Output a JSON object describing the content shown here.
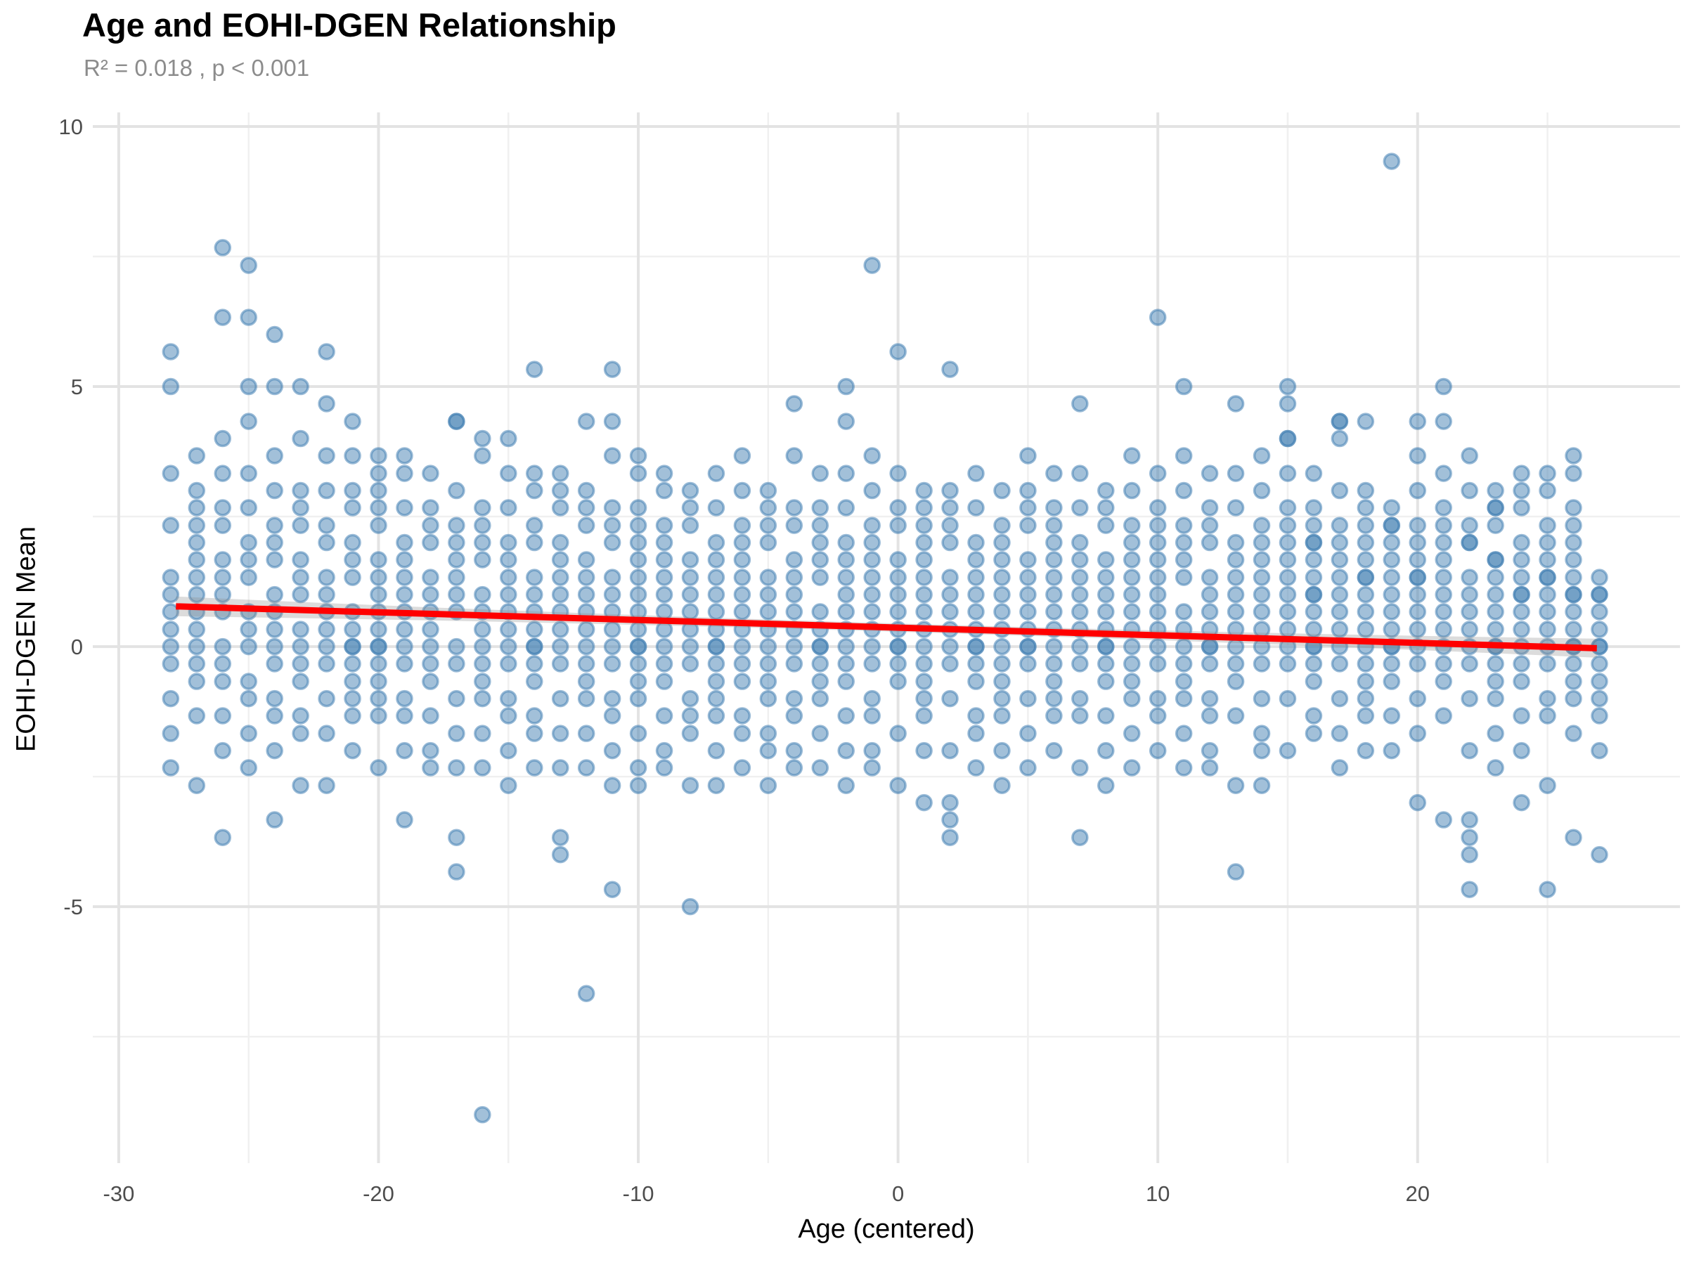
{
  "header": {
    "title": "Age and EOHI-DGEN Relationship",
    "subtitle": "R² = 0.018 , p < 0.001"
  },
  "chart_data": {
    "type": "scatter",
    "title": "Age and EOHI-DGEN Relationship",
    "subtitle": "R² = 0.018 , p < 0.001",
    "xlabel": "Age (centered)",
    "ylabel": "EOHI-DGEN Mean",
    "xlim": [
      -31,
      30.1
    ],
    "ylim": [
      -9.93,
      10.27
    ],
    "x_ticks": [
      -30,
      -20,
      -10,
      0,
      10,
      20
    ],
    "y_ticks": [
      -5,
      0,
      5,
      10
    ],
    "x_minor": [
      -25,
      -15,
      -5,
      5,
      15,
      25
    ],
    "y_minor": [
      -7.5,
      -2.5,
      2.5,
      7.5
    ],
    "grid": "on",
    "legend": "none",
    "point_color": "#4682B4",
    "line_color": "#FF0000",
    "band_color": "#8c8c8c",
    "stats": {
      "r_squared": 0.018,
      "p_value_label": "p < 0.001"
    },
    "regression": {
      "slope": -0.0147,
      "intercept": 0.365,
      "x_start": -27.8,
      "x_end": 26.9,
      "band_half_width_mid": 0.08,
      "band_half_width_end": 0.19
    },
    "points_by_x": [
      [
        -28,
        [
          5.67,
          5,
          3.33,
          2.33,
          1.33,
          1,
          0.67,
          0.33,
          0,
          -0.33,
          -1,
          -1.67,
          -2.33
        ]
      ],
      [
        -27,
        [
          3.67,
          3,
          2.67,
          2.33,
          2,
          1.67,
          1.33,
          1,
          0.67,
          0.33,
          0,
          -0.33,
          -0.67,
          -1.33,
          -2.67
        ]
      ],
      [
        -26,
        [
          7.67,
          6.33,
          4,
          3.33,
          2.67,
          2.33,
          1.67,
          1.33,
          1,
          0.67,
          0,
          -0.33,
          -0.67,
          -1.33,
          -2,
          -3.67
        ]
      ],
      [
        -25,
        [
          7.33,
          6.33,
          5,
          4.33,
          3.33,
          2.67,
          2,
          1.67,
          1.33,
          0.67,
          0.33,
          0,
          -0.67,
          -1,
          -1.67,
          -2.33
        ]
      ],
      [
        -24,
        [
          6,
          5,
          3.67,
          3,
          2.33,
          2,
          1.67,
          1,
          0.67,
          0.33,
          0,
          -0.33,
          -1,
          -1.33,
          -2,
          -3.33
        ]
      ],
      [
        -23,
        [
          5,
          4,
          3,
          2.67,
          2.33,
          1.67,
          1.33,
          1,
          0.33,
          0,
          -0.33,
          -0.67,
          -1.33,
          -1.67,
          -2.67
        ]
      ],
      [
        -22,
        [
          5.67,
          4.67,
          3.67,
          3,
          2.33,
          2,
          1.33,
          1,
          0.67,
          0.33,
          0,
          -0.33,
          -1,
          -1.67,
          -2.67
        ]
      ],
      [
        -21,
        [
          4.33,
          3.67,
          3,
          2.67,
          2,
          1.67,
          1.33,
          0.67,
          0.33,
          0,
          0,
          -0.33,
          -0.67,
          -1,
          -1.33,
          -2
        ]
      ],
      [
        -20,
        [
          3.67,
          3.33,
          3,
          2.67,
          2.33,
          1.67,
          1.33,
          1,
          0.67,
          0.33,
          0,
          0,
          -0.33,
          -0.67,
          -1,
          -1.33,
          -2.33
        ]
      ],
      [
        -19,
        [
          3.67,
          3.33,
          2.67,
          2,
          1.67,
          1.33,
          1,
          0.67,
          0.33,
          0,
          -0.33,
          -1,
          -1.33,
          -2,
          -3.33
        ]
      ],
      [
        -18,
        [
          3.33,
          2.67,
          2.33,
          2,
          1.33,
          1,
          0.67,
          0.33,
          0,
          -0.33,
          -0.67,
          -1.33,
          -2,
          -2.33
        ]
      ],
      [
        -17,
        [
          4.33,
          4.33,
          3,
          2.33,
          2,
          1.67,
          1.33,
          1,
          0.67,
          0,
          -0.33,
          -1,
          -1.67,
          -2.33,
          -3.67,
          -4.33
        ]
      ],
      [
        -16,
        [
          4,
          3.67,
          2.67,
          2.33,
          2,
          1.67,
          1,
          0.67,
          0.33,
          0,
          -0.33,
          -0.67,
          -1,
          -1.67,
          -2.33,
          -9
        ]
      ],
      [
        -15,
        [
          4,
          3.33,
          2.67,
          2,
          1.67,
          1.33,
          1,
          0.67,
          0.33,
          0,
          -0.33,
          -1,
          -1.33,
          -2,
          -2.67
        ]
      ],
      [
        -14,
        [
          5.33,
          3.33,
          3,
          2.33,
          2,
          1.33,
          1,
          0.67,
          0.33,
          0,
          0,
          -0.33,
          -0.67,
          -1.33,
          -1.67,
          -2.33
        ]
      ],
      [
        -13,
        [
          3.33,
          3,
          2.67,
          2,
          1.67,
          1.33,
          1,
          0.67,
          0.33,
          0,
          -0.33,
          -1,
          -1.67,
          -2.33,
          -3.67,
          -4
        ]
      ],
      [
        -12,
        [
          4.33,
          3,
          2.67,
          2.33,
          1.67,
          1.33,
          1,
          0.67,
          0.33,
          0,
          -0.33,
          -0.67,
          -1,
          -1.67,
          -2.33,
          -6.67
        ]
      ],
      [
        -11,
        [
          5.33,
          4.33,
          3.67,
          2.67,
          2.33,
          2,
          1.33,
          1,
          0.67,
          0.33,
          0,
          -0.33,
          -1,
          -1.33,
          -2,
          -2.67,
          -4.67
        ]
      ],
      [
        -10,
        [
          3.67,
          3.33,
          2.67,
          2.33,
          2,
          1.67,
          1.33,
          1,
          0.67,
          0.33,
          0,
          0,
          -0.33,
          -0.67,
          -1,
          -1.67,
          -2.33,
          -2.67
        ]
      ],
      [
        -9,
        [
          3.33,
          3,
          2.33,
          2,
          1.67,
          1.33,
          1,
          0.67,
          0.33,
          0,
          -0.33,
          -0.67,
          -1.33,
          -2,
          -2.33
        ]
      ],
      [
        -8,
        [
          3,
          2.67,
          2.33,
          1.67,
          1.33,
          1,
          0.67,
          0.33,
          0,
          -0.33,
          -1,
          -1.33,
          -1.67,
          -2.67,
          -5
        ]
      ],
      [
        -7,
        [
          3.33,
          2.67,
          2,
          1.67,
          1.33,
          1,
          0.67,
          0.33,
          0,
          0,
          -0.33,
          -0.67,
          -1,
          -1.33,
          -2,
          -2.67
        ]
      ],
      [
        -6,
        [
          3.67,
          3,
          2.33,
          2,
          1.67,
          1.33,
          1,
          0.67,
          0.33,
          0,
          -0.33,
          -0.67,
          -1.33,
          -1.67,
          -2.33
        ]
      ],
      [
        -5,
        [
          3,
          2.67,
          2.33,
          2,
          1.33,
          1,
          0.67,
          0.33,
          0,
          -0.33,
          -0.67,
          -1,
          -1.67,
          -2,
          -2.67
        ]
      ],
      [
        -4,
        [
          4.67,
          3.67,
          2.67,
          2.33,
          1.67,
          1.33,
          1,
          0.67,
          0.33,
          0,
          -0.33,
          -1,
          -1.33,
          -2,
          -2.33
        ]
      ],
      [
        -3,
        [
          3.33,
          2.67,
          2.33,
          2,
          1.67,
          1.33,
          0.67,
          0.33,
          0,
          0,
          -0.33,
          -0.67,
          -1,
          -1.67,
          -2.33
        ]
      ],
      [
        -2,
        [
          5,
          4.33,
          3.33,
          2.67,
          2,
          1.67,
          1.33,
          1,
          0.67,
          0.33,
          0,
          -0.33,
          -0.67,
          -1.33,
          -2,
          -2.67
        ]
      ],
      [
        -1,
        [
          7.33,
          3.67,
          3,
          2.33,
          2,
          1.67,
          1.33,
          1,
          0.67,
          0.33,
          0,
          -0.33,
          -1,
          -1.33,
          -2,
          -2.33
        ]
      ],
      [
        0,
        [
          5.67,
          3.33,
          2.67,
          2.33,
          1.67,
          1.33,
          1,
          0.67,
          0.33,
          0,
          0,
          -0.33,
          -0.67,
          -1.67,
          -2.67
        ]
      ],
      [
        1,
        [
          3,
          2.67,
          2.33,
          2,
          1.67,
          1.33,
          1,
          0.67,
          0.33,
          0,
          -0.33,
          -0.67,
          -1,
          -1.33,
          -2,
          -3
        ]
      ],
      [
        2,
        [
          5.33,
          3,
          2.67,
          2.33,
          2,
          1.33,
          1,
          0.67,
          0.33,
          0,
          -0.33,
          -1,
          -2,
          -3,
          -3.33,
          -3.67
        ]
      ],
      [
        3,
        [
          3.33,
          2.67,
          2,
          1.67,
          1.33,
          1,
          0.67,
          0.33,
          0,
          0,
          -0.33,
          -0.67,
          -1.33,
          -1.67,
          -2.33
        ]
      ],
      [
        4,
        [
          3,
          2.33,
          2,
          1.67,
          1.33,
          1,
          0.67,
          0.33,
          0,
          -0.33,
          -0.67,
          -1,
          -1.33,
          -2,
          -2.67
        ]
      ],
      [
        5,
        [
          3.67,
          3,
          2.67,
          2.33,
          1.67,
          1.33,
          1,
          0.67,
          0.33,
          0,
          0,
          -0.33,
          -1,
          -1.67,
          -2.33
        ]
      ],
      [
        6,
        [
          3.33,
          2.67,
          2.33,
          2,
          1.67,
          1.33,
          1,
          0.67,
          0.33,
          0,
          -0.33,
          -0.67,
          -1,
          -1.33,
          -2
        ]
      ],
      [
        7,
        [
          4.67,
          3.33,
          2.67,
          2,
          1.67,
          1.33,
          1,
          0.67,
          0.33,
          0,
          -0.33,
          -1,
          -1.33,
          -2.33,
          -3.67
        ]
      ],
      [
        8,
        [
          3,
          2.67,
          2.33,
          1.67,
          1.33,
          1,
          0.67,
          0.33,
          0,
          0,
          -0.33,
          -0.67,
          -1.33,
          -2,
          -2.67
        ]
      ],
      [
        9,
        [
          3.67,
          3,
          2.33,
          2,
          1.67,
          1.33,
          1,
          0.67,
          0.33,
          0,
          -0.33,
          -0.67,
          -1,
          -1.67,
          -2.33
        ]
      ],
      [
        10,
        [
          6.33,
          3.33,
          2.67,
          2.33,
          2,
          1.67,
          1.33,
          1,
          0.67,
          0.33,
          0,
          -0.33,
          -1,
          -1.33,
          -2
        ]
      ],
      [
        11,
        [
          5,
          3.67,
          3,
          2.33,
          2,
          1.67,
          1.33,
          0.67,
          0.33,
          0,
          -0.33,
          -0.67,
          -1,
          -1.67,
          -2.33
        ]
      ],
      [
        12,
        [
          3.33,
          2.67,
          2.33,
          2,
          1.33,
          1,
          0.67,
          0.33,
          0,
          0,
          -0.33,
          -1,
          -1.33,
          -2,
          -2.33
        ]
      ],
      [
        13,
        [
          4.67,
          3.33,
          2.67,
          2,
          1.67,
          1.33,
          1,
          0.67,
          0.33,
          0,
          -0.33,
          -0.67,
          -1.33,
          -2.67,
          -4.33
        ]
      ],
      [
        14,
        [
          3.67,
          3,
          2.33,
          2,
          1.67,
          1.33,
          1,
          0.67,
          0.33,
          0,
          -0.33,
          -1,
          -1.67,
          -2,
          -2.67
        ]
      ],
      [
        15,
        [
          5,
          4.67,
          4,
          4,
          3.33,
          2.67,
          2.33,
          2,
          1.67,
          1.33,
          1,
          0.67,
          0.33,
          0,
          -0.33,
          -1,
          -2
        ]
      ],
      [
        16,
        [
          3.33,
          2.67,
          2.33,
          2,
          2,
          1.67,
          1.33,
          1,
          1,
          0.67,
          0.33,
          0,
          0,
          -0.33,
          -0.67,
          -1.33,
          -1.67
        ]
      ],
      [
        17,
        [
          4.33,
          4.33,
          4,
          3,
          2.33,
          2,
          1.67,
          1.33,
          1,
          0.67,
          0.33,
          0,
          -0.33,
          -1,
          -1.67,
          -2.33
        ]
      ],
      [
        18,
        [
          4.33,
          3,
          2.67,
          2.33,
          2,
          1.67,
          1.33,
          1.33,
          1,
          0.67,
          0.33,
          0,
          -0.33,
          -0.67,
          -1,
          -1.33,
          -2
        ]
      ],
      [
        19,
        [
          9.33,
          2.67,
          2.33,
          2.33,
          2,
          1.67,
          1.33,
          1,
          0.67,
          0.33,
          0,
          0,
          -0.33,
          -0.67,
          -1.33,
          -2
        ]
      ],
      [
        20,
        [
          4.33,
          3.67,
          3,
          2.33,
          2,
          1.67,
          1.33,
          1.33,
          1,
          0.67,
          0.33,
          0,
          -0.33,
          -1,
          -1.67,
          -3
        ]
      ],
      [
        21,
        [
          5,
          4.33,
          3.33,
          2.67,
          2.33,
          2,
          1.67,
          1.33,
          1,
          0.67,
          0.33,
          0,
          -0.33,
          -0.67,
          -1.33,
          -3.33
        ]
      ],
      [
        22,
        [
          3.67,
          3,
          2.33,
          2,
          2,
          1.33,
          1,
          0.67,
          0.33,
          0,
          -0.33,
          -1,
          -2,
          -3.33,
          -3.67,
          -4,
          -4.67
        ]
      ],
      [
        23,
        [
          3,
          2.67,
          2.67,
          2.33,
          1.67,
          1.67,
          1.33,
          1,
          0.67,
          0.33,
          0,
          0,
          -0.33,
          -0.67,
          -1,
          -1.67,
          -2.33
        ]
      ],
      [
        24,
        [
          3.33,
          3,
          2.67,
          2,
          1.67,
          1.33,
          1,
          1,
          0.67,
          0.33,
          0,
          -0.33,
          -0.67,
          -1.33,
          -2,
          -3
        ]
      ],
      [
        25,
        [
          3.33,
          3,
          2.33,
          2,
          1.67,
          1.33,
          1.33,
          1,
          0.67,
          0.33,
          0,
          -0.33,
          -1,
          -1.33,
          -2.67,
          -4.67
        ]
      ],
      [
        26,
        [
          3.67,
          3.33,
          2.67,
          2.33,
          2,
          1.67,
          1.33,
          1,
          1,
          0.67,
          0.33,
          0,
          0,
          -0.33,
          -0.67,
          -1,
          -1.67,
          -3.67
        ]
      ],
      [
        27,
        [
          1.33,
          1,
          1,
          0.67,
          0.33,
          0,
          0,
          -0.33,
          -0.67,
          -1,
          -1.33,
          -2,
          -4
        ]
      ]
    ]
  }
}
